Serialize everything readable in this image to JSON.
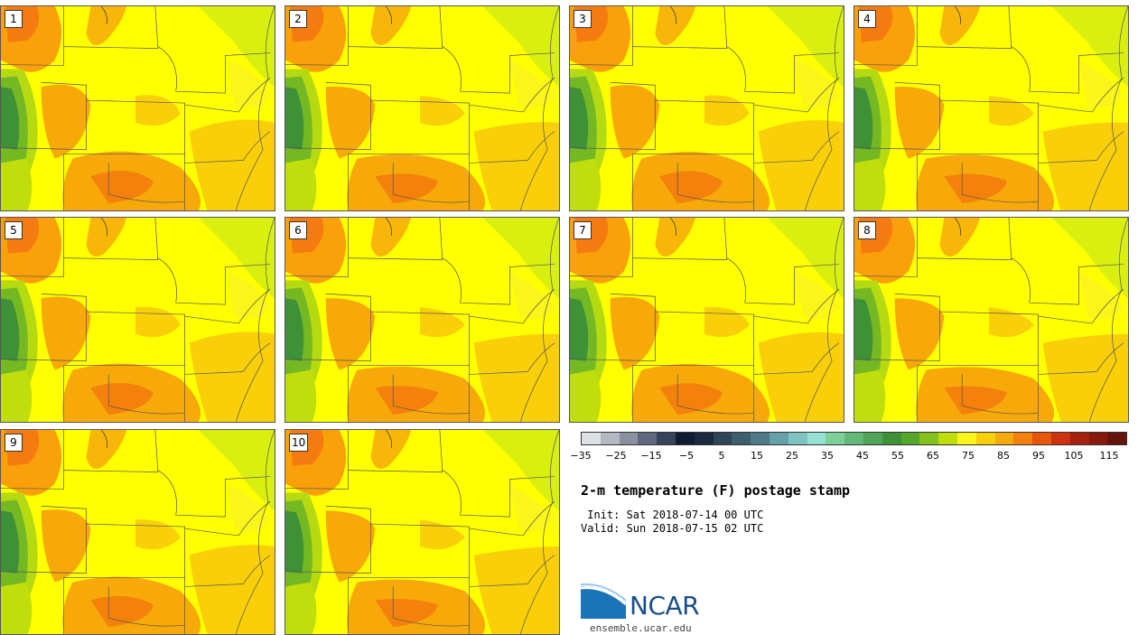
{
  "map": {
    "panels": [
      "1",
      "2",
      "3",
      "4",
      "5",
      "6",
      "7",
      "8",
      "9",
      "10"
    ]
  },
  "colorbar": {
    "colors": [
      "#dde1e6",
      "#b4b8c2",
      "#8a90a0",
      "#5f687e",
      "#37425c",
      "#0f1a33",
      "#1b2940",
      "#2d4459",
      "#3d5d71",
      "#4f7987",
      "#66a0a8",
      "#7cc3c2",
      "#95e2d4",
      "#7fcf9a",
      "#63b97a",
      "#4fa657",
      "#3e9136",
      "#56a52d",
      "#86c01e",
      "#c0dd0c",
      "#fbf51a",
      "#f8cf08",
      "#f6a908",
      "#f3810c",
      "#e8560d",
      "#cd3210",
      "#a6200e",
      "#881a0c",
      "#641409"
    ],
    "ticks": [
      "−35",
      "−25",
      "−15",
      "−5",
      "5",
      "15",
      "25",
      "35",
      "45",
      "55",
      "65",
      "75",
      "85",
      "95",
      "105",
      "115"
    ]
  },
  "title": "2-m temperature (F) postage stamp",
  "init": " Init: Sat 2018-07-14 00 UTC",
  "valid": "Valid: Sun 2018-07-15 02 UTC",
  "logo": {
    "name": "NCAR",
    "url": "ensemble.ucar.edu"
  }
}
